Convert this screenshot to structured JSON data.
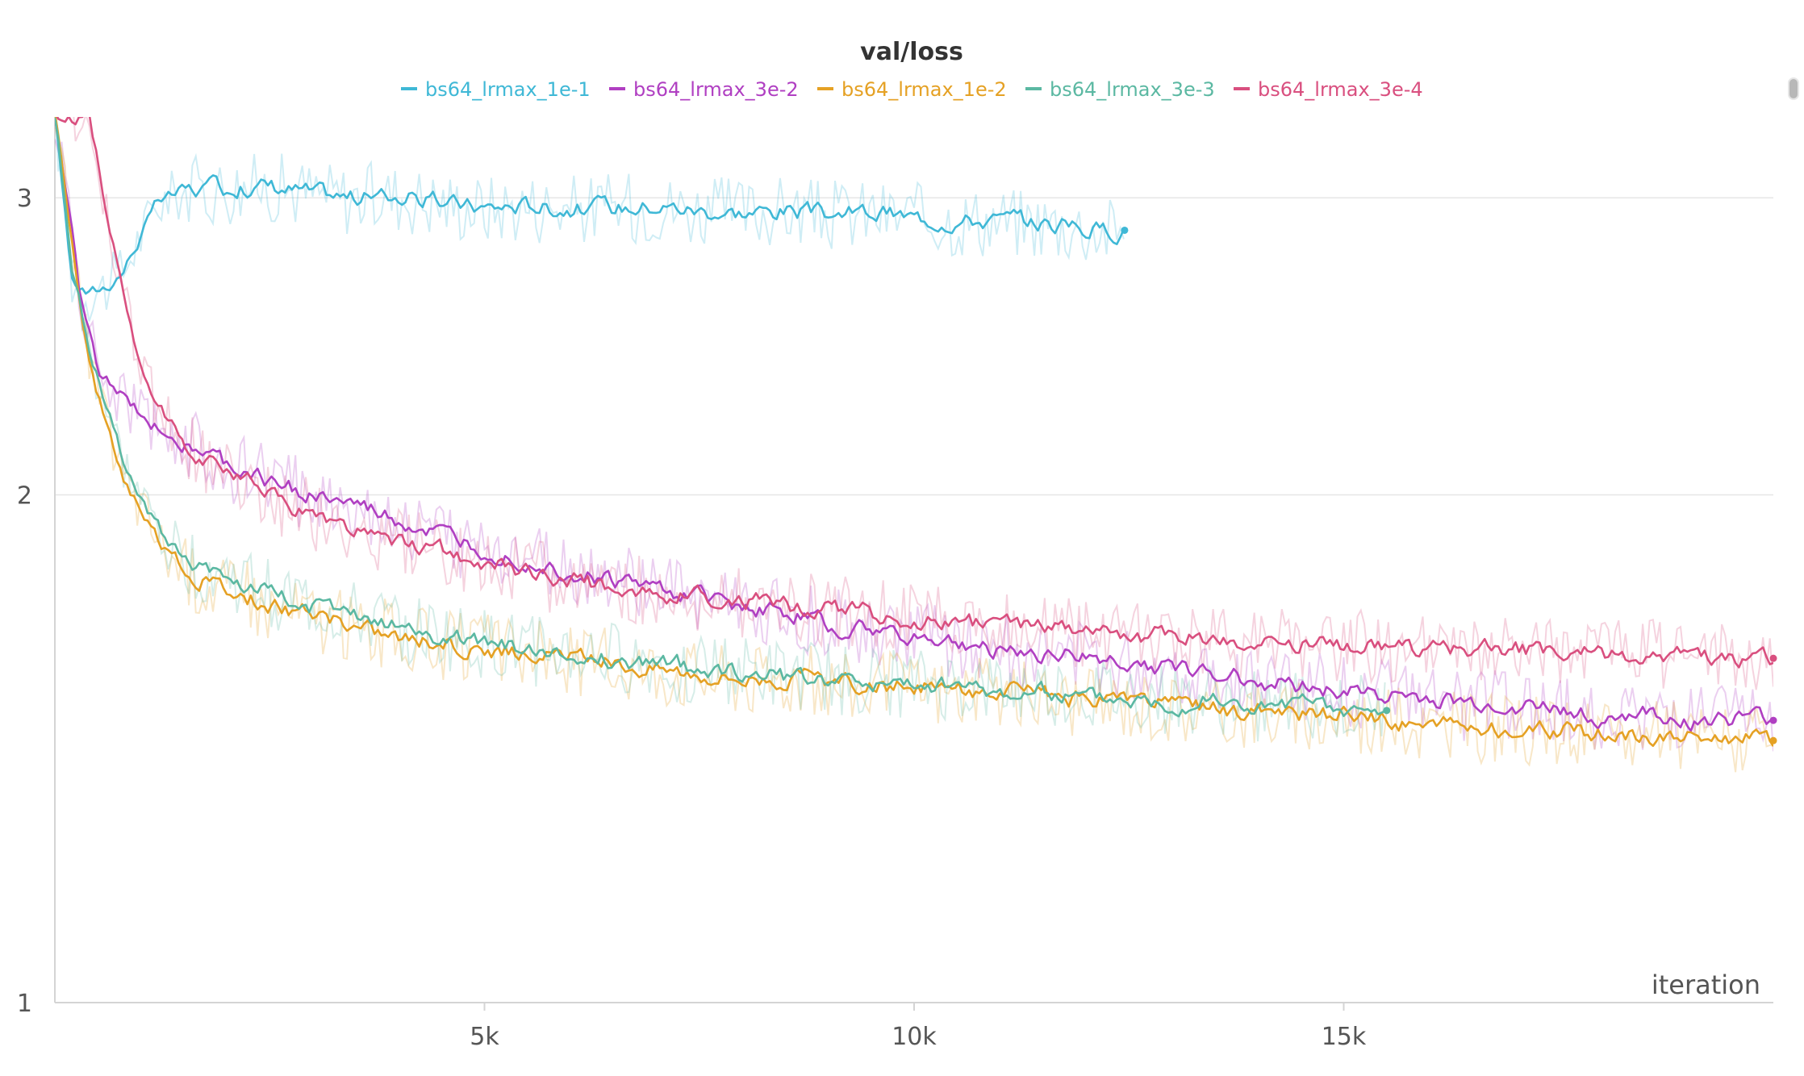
{
  "chart_data": {
    "type": "line",
    "title": "val/loss",
    "xlabel": "iteration",
    "ylabel": "",
    "xlim": [
      0,
      20000
    ],
    "ylim": [
      1,
      3.35
    ],
    "y_scale": "log",
    "grid": true,
    "legend_position": "top-center",
    "x_ticks": [
      5000,
      10000,
      15000
    ],
    "x_tick_labels": [
      "5k",
      "10k",
      "15k"
    ],
    "y_ticks": [
      1,
      2,
      3
    ],
    "y_tick_labels": [
      "1",
      "2",
      "3"
    ],
    "series": [
      {
        "name": "bs64_lrmax_1e-1",
        "color": "#3fb8d6",
        "x": [
          0,
          200,
          400,
          600,
          800,
          1000,
          1200,
          1500,
          2000,
          2500,
          3000,
          3500,
          4000,
          4500,
          5000,
          5500,
          6000,
          6500,
          7000,
          7500,
          8000,
          8500,
          9000,
          9500,
          10000,
          10500,
          11000,
          11500,
          12000,
          12300,
          12450
        ],
        "values": [
          3.35,
          2.68,
          2.63,
          2.66,
          2.72,
          2.85,
          2.98,
          3.03,
          3.04,
          3.05,
          3.02,
          3.0,
          3.01,
          2.98,
          2.96,
          2.97,
          2.96,
          2.96,
          2.97,
          2.95,
          2.94,
          2.95,
          2.93,
          2.94,
          2.92,
          2.91,
          2.91,
          2.9,
          2.88,
          2.87,
          2.87
        ]
      },
      {
        "name": "bs64_lrmax_3e-2",
        "color": "#b03fc2",
        "x": [
          0,
          300,
          500,
          700,
          1000,
          1500,
          2000,
          2500,
          3000,
          3500,
          4000,
          4500,
          5000,
          5500,
          6000,
          6500,
          7000,
          7500,
          8000,
          8500,
          9000,
          9500,
          10000,
          10500,
          11000,
          11500,
          12000,
          12500,
          13000,
          13500,
          14000,
          14500,
          15000,
          15500,
          16000,
          16500,
          17000,
          17500,
          18000,
          18500,
          19000,
          19500,
          20000
        ],
        "values": [
          3.35,
          2.6,
          2.38,
          2.3,
          2.23,
          2.15,
          2.08,
          2.04,
          2.0,
          1.97,
          1.93,
          1.89,
          1.86,
          1.83,
          1.8,
          1.78,
          1.76,
          1.74,
          1.72,
          1.7,
          1.68,
          1.66,
          1.65,
          1.63,
          1.62,
          1.61,
          1.6,
          1.59,
          1.58,
          1.57,
          1.55,
          1.54,
          1.53,
          1.52,
          1.51,
          1.5,
          1.5,
          1.49,
          1.48,
          1.48,
          1.47,
          1.47,
          1.47
        ]
      },
      {
        "name": "bs64_lrmax_1e-2",
        "color": "#e5a124",
        "x": [
          0,
          200,
          400,
          600,
          800,
          1000,
          1300,
          1600,
          2000,
          2500,
          3000,
          3500,
          4000,
          4500,
          5000,
          5500,
          6000,
          6500,
          7000,
          7500,
          8000,
          8500,
          9000,
          9500,
          10000,
          10500,
          11000,
          11500,
          12000,
          12500,
          13000,
          13500,
          14000,
          14500,
          15000,
          15500,
          16000,
          16500,
          17000,
          17500,
          18000,
          18500,
          19000,
          19500,
          20000
        ],
        "values": [
          3.35,
          2.8,
          2.4,
          2.2,
          2.05,
          1.97,
          1.85,
          1.79,
          1.76,
          1.72,
          1.7,
          1.67,
          1.65,
          1.63,
          1.62,
          1.61,
          1.6,
          1.59,
          1.58,
          1.57,
          1.56,
          1.56,
          1.55,
          1.54,
          1.54,
          1.53,
          1.53,
          1.52,
          1.51,
          1.51,
          1.5,
          1.49,
          1.49,
          1.48,
          1.48,
          1.47,
          1.46,
          1.46,
          1.45,
          1.45,
          1.44,
          1.44,
          1.44,
          1.44,
          1.43
        ]
      },
      {
        "name": "bs64_lrmax_3e-3",
        "color": "#5bb8a2",
        "x": [
          0,
          200,
          400,
          600,
          800,
          1000,
          1300,
          1600,
          2000,
          2500,
          3000,
          3500,
          4000,
          4500,
          5000,
          5500,
          6000,
          6500,
          7000,
          7500,
          8000,
          8500,
          9000,
          9500,
          10000,
          10500,
          11000,
          11500,
          12000,
          12500,
          13000,
          13500,
          14000,
          14500,
          15000,
          15500
        ],
        "values": [
          3.35,
          2.75,
          2.42,
          2.25,
          2.08,
          1.98,
          1.88,
          1.82,
          1.79,
          1.75,
          1.72,
          1.69,
          1.67,
          1.65,
          1.63,
          1.62,
          1.61,
          1.6,
          1.59,
          1.58,
          1.57,
          1.56,
          1.56,
          1.55,
          1.54,
          1.54,
          1.53,
          1.53,
          1.52,
          1.52,
          1.51,
          1.51,
          1.5,
          1.5,
          1.49,
          1.49
        ]
      },
      {
        "name": "bs64_lrmax_3e-4",
        "color": "#d94f7f",
        "x": [
          0,
          400,
          600,
          800,
          1000,
          1200,
          1500,
          2000,
          2500,
          3000,
          3500,
          4000,
          4500,
          5000,
          5500,
          6000,
          6500,
          7000,
          7500,
          8000,
          8500,
          9000,
          9500,
          10000,
          10500,
          11000,
          11500,
          12000,
          12500,
          13000,
          13500,
          14000,
          14500,
          15000,
          15500,
          16000,
          16500,
          17000,
          17500,
          18000,
          18500,
          19000,
          19500,
          20000
        ],
        "values": [
          3.35,
          3.35,
          2.95,
          2.6,
          2.38,
          2.25,
          2.15,
          2.06,
          2.0,
          1.95,
          1.91,
          1.87,
          1.85,
          1.82,
          1.8,
          1.78,
          1.76,
          1.75,
          1.74,
          1.73,
          1.72,
          1.71,
          1.7,
          1.69,
          1.68,
          1.67,
          1.67,
          1.66,
          1.65,
          1.65,
          1.64,
          1.64,
          1.63,
          1.63,
          1.63,
          1.62,
          1.62,
          1.62,
          1.61,
          1.61,
          1.61,
          1.61,
          1.6,
          1.6
        ]
      }
    ]
  }
}
